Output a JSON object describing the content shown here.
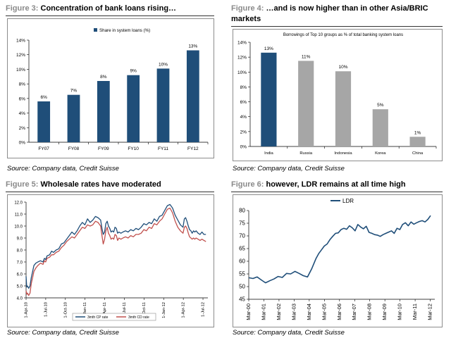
{
  "colors": {
    "navy": "#1f4e79",
    "grey": "#a6a6a6",
    "red": "#c0504d",
    "figure_label": "#8a8a8a"
  },
  "figures": [
    {
      "label": "Figure 3:",
      "title": "Concentration of bank loans rising…",
      "source": "Source: Company data, Credit Suisse"
    },
    {
      "label": "Figure 4:",
      "title": "…and is now higher than in other Asia/BRIC",
      "title2": "markets",
      "source": "Source: Company data, Credit Suisse"
    },
    {
      "label": "Figure 5:",
      "title": "Wholesale rates have moderated",
      "source": "Source: Company data, Credit Suisse"
    },
    {
      "label": "Figure 6:",
      "title": "however, LDR remains at all time high",
      "source": "Source: Company data, Credit Suisse"
    }
  ],
  "chart_data": [
    {
      "type": "bar",
      "legend": "Share in system loans (%)",
      "legend_position": "top",
      "categories": [
        "FY07",
        "FY08",
        "FY09",
        "FY10",
        "FY11",
        "FY12"
      ],
      "values": [
        5.6,
        6.5,
        8.4,
        9.2,
        10.1,
        12.6
      ],
      "data_labels": [
        "6%",
        "7%",
        "8%",
        "9%",
        "10%",
        "13%"
      ],
      "ylim": [
        0,
        14
      ],
      "yticks": [
        "0%",
        "2%",
        "4%",
        "6%",
        "8%",
        "10%",
        "12%",
        "14%"
      ],
      "bar_color": "#1f4e79"
    },
    {
      "type": "bar",
      "title": "Borrowings of Top 10 groups as % of total banking system loans",
      "categories": [
        "India",
        "Russia",
        "Indonesia",
        "Korea",
        "China"
      ],
      "values": [
        12.6,
        11.5,
        10.1,
        5.0,
        1.3
      ],
      "data_labels": [
        "13%",
        "11%",
        "10%",
        "5%",
        "1%"
      ],
      "ylim": [
        0,
        14
      ],
      "yticks": [
        "0%",
        "2%",
        "4%",
        "6%",
        "8%",
        "10%",
        "12%",
        "14%"
      ],
      "bar_colors": [
        "#1f4e79",
        "#a6a6a6",
        "#a6a6a6",
        "#a6a6a6",
        "#a6a6a6"
      ]
    },
    {
      "type": "line",
      "xlabels": [
        "1-Apr-10",
        "1-Jul-10",
        "1-Oct-10",
        "1-Jan-11",
        "1-Apr-11",
        "1-Jul-11",
        "1-Oct-11",
        "1-Jan-12",
        "1-Apr-12",
        "1-Jul-12"
      ],
      "ylim": [
        4.0,
        12.0
      ],
      "yticks": [
        "4.0",
        "5.0",
        "6.0",
        "7.0",
        "8.0",
        "9.0",
        "10.0",
        "11.0",
        "12.0"
      ],
      "legend_position": "bottom",
      "series": [
        {
          "name": "3mth CP rate",
          "color": "#1f4e79",
          "x": [
            0,
            0.1,
            0.2,
            0.4,
            0.6,
            0.8,
            1.0,
            1.2,
            1.5,
            1.8,
            2.2,
            2.6,
            2.8,
            3.0,
            3.2,
            3.6,
            3.9,
            4.2,
            4.6,
            5.0,
            5.4,
            5.8,
            6.2,
            6.6,
            7.0,
            7.4,
            7.8,
            8.2,
            8.6,
            9.0,
            9.4,
            9.8,
            10.2,
            10.6,
            11.0,
            11.4,
            11.6,
            11.8,
            12.0,
            12.2,
            12.4,
            12.6,
            12.8,
            13.0,
            13.2,
            13.4,
            13.6,
            13.8,
            14.0,
            14.2,
            14.5,
            14.8,
            15.2,
            15.6,
            16.0,
            16.4,
            16.8,
            17.2,
            17.6,
            18.0,
            18.4,
            18.8,
            19.2,
            19.6,
            20.0,
            20.4,
            20.8,
            21.2,
            21.6,
            22.0,
            22.4,
            22.8,
            23.2,
            23.6,
            24.0,
            24.2,
            24.4,
            24.6,
            24.8,
            25.0,
            25.2,
            25.4,
            25.6,
            25.8,
            26.0,
            26.3,
            26.6,
            26.9,
            27.2,
            27.5
          ],
          "y": [
            5.8,
            4.9,
            5.0,
            4.8,
            5.0,
            5.7,
            6.2,
            6.7,
            6.9,
            7.0,
            7.1,
            7.0,
            7.3,
            7.2,
            7.5,
            7.6,
            7.9,
            7.8,
            8.0,
            8.1,
            8.5,
            8.6,
            8.9,
            9.2,
            9.5,
            9.3,
            9.6,
            10.0,
            10.3,
            10.1,
            10.6,
            10.3,
            10.5,
            10.8,
            10.7,
            10.5,
            9.8,
            9.3,
            9.5,
            10.2,
            10.4,
            10.0,
            9.8,
            9.5,
            9.6,
            9.5,
            9.9,
            9.8,
            9.4,
            9.5,
            9.4,
            9.5,
            9.6,
            9.5,
            9.7,
            9.6,
            9.8,
            9.7,
            9.9,
            10.2,
            10.1,
            10.3,
            10.2,
            10.6,
            10.4,
            10.8,
            10.9,
            11.3,
            11.7,
            11.8,
            11.5,
            10.9,
            10.5,
            10.1,
            9.9,
            10.6,
            10.7,
            10.4,
            10.0,
            9.7,
            9.6,
            9.4,
            9.6,
            9.5,
            9.6,
            9.4,
            9.3,
            9.5,
            9.3,
            9.3
          ]
        },
        {
          "name": "3mth CD rate",
          "color": "#c0504d",
          "x": [
            0,
            0.1,
            0.2,
            0.4,
            0.6,
            0.8,
            1.0,
            1.2,
            1.5,
            1.8,
            2.2,
            2.6,
            2.8,
            3.0,
            3.2,
            3.6,
            3.9,
            4.2,
            4.6,
            5.0,
            5.4,
            5.8,
            6.2,
            6.6,
            7.0,
            7.4,
            7.8,
            8.2,
            8.6,
            9.0,
            9.4,
            9.8,
            10.2,
            10.6,
            11.0,
            11.4,
            11.6,
            11.8,
            12.0,
            12.2,
            12.4,
            12.6,
            12.8,
            13.0,
            13.2,
            13.4,
            13.6,
            13.8,
            14.0,
            14.2,
            14.5,
            14.8,
            15.2,
            15.6,
            16.0,
            16.4,
            16.8,
            17.2,
            17.6,
            18.0,
            18.4,
            18.8,
            19.2,
            19.6,
            20.0,
            20.4,
            20.8,
            21.2,
            21.6,
            22.0,
            22.4,
            22.8,
            23.2,
            23.6,
            24.0,
            24.2,
            24.4,
            24.6,
            24.8,
            25.0,
            25.2,
            25.4,
            25.6,
            25.8,
            26.0,
            26.3,
            26.6,
            26.9,
            27.2,
            27.5
          ],
          "y": [
            4.6,
            4.3,
            4.4,
            4.2,
            4.4,
            5.2,
            5.7,
            6.2,
            6.5,
            6.7,
            6.9,
            6.8,
            7.1,
            7.0,
            7.3,
            7.4,
            7.6,
            7.6,
            7.8,
            7.9,
            8.2,
            8.4,
            8.7,
            8.9,
            9.1,
            9.0,
            9.3,
            9.6,
            9.9,
            9.8,
            10.1,
            10.0,
            10.1,
            10.4,
            10.3,
            10.0,
            9.2,
            8.5,
            8.9,
            9.6,
            9.9,
            9.4,
            9.2,
            8.9,
            9.0,
            8.9,
            9.3,
            9.2,
            8.8,
            9.0,
            8.9,
            9.0,
            9.1,
            9.0,
            9.2,
            9.1,
            9.3,
            9.3,
            9.4,
            9.7,
            9.6,
            9.9,
            9.8,
            10.2,
            10.1,
            10.4,
            10.6,
            11.0,
            11.4,
            11.5,
            11.1,
            10.4,
            9.9,
            9.6,
            9.4,
            9.9,
            10.0,
            9.8,
            9.4,
            9.1,
            9.0,
            8.9,
            9.0,
            8.9,
            9.0,
            8.9,
            8.8,
            8.9,
            8.8,
            8.7
          ]
        }
      ]
    },
    {
      "type": "line",
      "legend_position": "top",
      "xlabels": [
        "Mar-00",
        "Mar-01",
        "Mar-02",
        "Mar-03",
        "Mar-04",
        "Mar-05",
        "Mar-06",
        "Mar-07",
        "Mar-08",
        "Mar-09",
        "Mar-10",
        "Mar-11",
        "Mar-12"
      ],
      "ylim": [
        45,
        80
      ],
      "yticks": [
        "45",
        "50",
        "55",
        "60",
        "65",
        "70",
        "75",
        "80"
      ],
      "series": [
        {
          "name": "LDR",
          "color": "#1f4e79",
          "x": [
            0,
            0.3,
            0.6,
            0.9,
            1.2,
            1.5,
            1.8,
            2.1,
            2.4,
            2.7,
            3.0,
            3.3,
            3.6,
            3.9,
            4.2,
            4.5,
            4.8,
            5.0,
            5.2,
            5.4,
            5.6,
            5.8,
            6.0,
            6.2,
            6.4,
            6.6,
            6.8,
            7.0,
            7.2,
            7.4,
            7.6,
            7.8,
            8.0,
            8.2,
            8.4,
            8.6,
            8.8,
            9.0,
            9.2,
            9.4,
            9.6,
            9.8,
            10.0,
            10.2,
            10.4,
            10.6,
            10.8,
            11.0,
            11.2,
            11.4,
            11.6,
            11.8,
            12.0,
            12.2,
            12.4,
            12.6,
            12.8,
            13.0
          ],
          "y": [
            53.5,
            53.2,
            53.8,
            52.6,
            51.5,
            52.3,
            53.0,
            54.0,
            53.6,
            55.2,
            55.0,
            56.0,
            55.2,
            54.3,
            53.8,
            57.0,
            61.0,
            63.0,
            64.5,
            66.0,
            66.8,
            68.5,
            69.8,
            71.0,
            71.2,
            72.5,
            73.0,
            72.6,
            74.0,
            73.2,
            72.0,
            74.5,
            73.5,
            72.8,
            73.8,
            71.4,
            71.0,
            70.5,
            70.3,
            69.8,
            70.5,
            71.0,
            71.5,
            72.0,
            71.0,
            73.0,
            72.5,
            74.5,
            75.2,
            74.0,
            75.5,
            74.6,
            75.2,
            75.7,
            76.0,
            75.5,
            76.5,
            78.0
          ]
        }
      ]
    }
  ]
}
